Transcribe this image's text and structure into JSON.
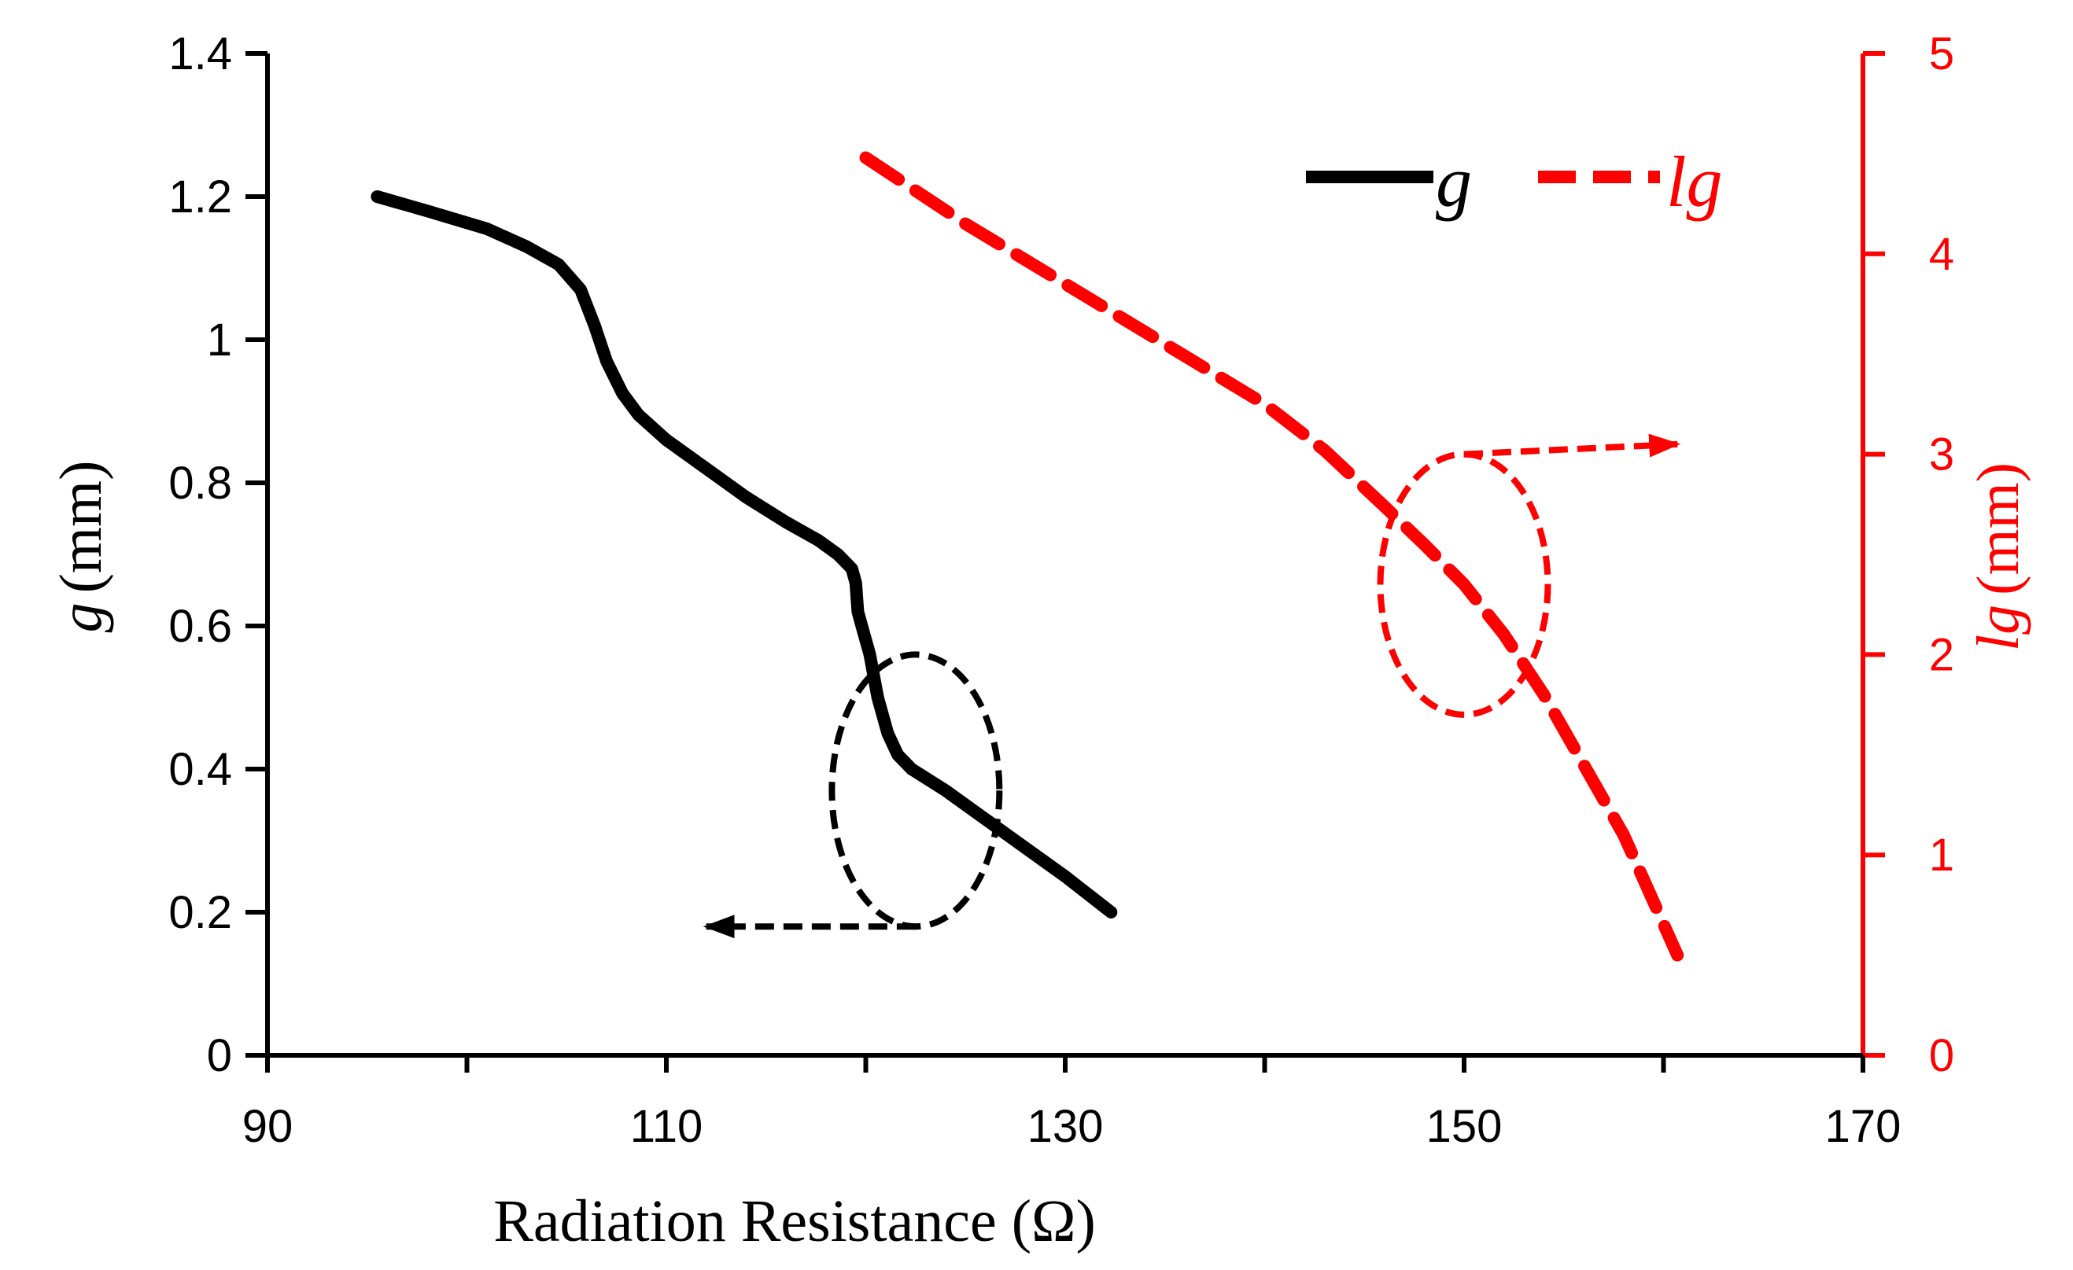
{
  "chart_data": {
    "type": "line",
    "title": "",
    "xlabel": "Radiation Resistance (Ω)",
    "xlim": [
      90,
      170
    ],
    "xticks": [
      90,
      110,
      130,
      150,
      170
    ],
    "xtick_labels": [
      "90",
      "110",
      "130",
      "150",
      "170"
    ],
    "ylabel_left": {
      "symbol": "g",
      "unit": "(mm)"
    },
    "ylim_left": [
      0,
      1.4
    ],
    "yticks_left": [
      0,
      0.2,
      0.4,
      0.6,
      0.8,
      1,
      1.2,
      1.4
    ],
    "ytick_labels_left": [
      "0",
      "0.2",
      "0.4",
      "0.6",
      "0.8",
      "1",
      "1.2",
      "1.4"
    ],
    "ylabel_right": {
      "symbol": "lg",
      "unit": "(mm)"
    },
    "ylim_right": [
      0,
      5
    ],
    "yticks_right": [
      0,
      1,
      2,
      3,
      4,
      5
    ],
    "ytick_labels_right": [
      "0",
      "1",
      "2",
      "3",
      "4",
      "5"
    ],
    "legend_position": "top-right",
    "series": [
      {
        "name": "g",
        "axis": "left",
        "style": "solid",
        "color": "#000000",
        "x": [
          95.5,
          98,
          101,
          103,
          104.6,
          105.7,
          106.4,
          107,
          107.8,
          108.6,
          110,
          112,
          114,
          116,
          117.6,
          118.6,
          119.3,
          119.5,
          119.6,
          119.8,
          120.2,
          120.6,
          121.1,
          121.6,
          122.3,
          124,
          126,
          128,
          130,
          132.3
        ],
        "y": [
          1.2,
          1.18,
          1.155,
          1.13,
          1.105,
          1.07,
          1.02,
          0.97,
          0.925,
          0.895,
          0.86,
          0.82,
          0.78,
          0.745,
          0.72,
          0.7,
          0.68,
          0.66,
          0.62,
          0.6,
          0.56,
          0.5,
          0.45,
          0.42,
          0.4,
          0.37,
          0.33,
          0.29,
          0.25,
          0.2
        ]
      },
      {
        "name": "lg",
        "axis": "right",
        "style": "dashed",
        "color": "#ff0000",
        "x": [
          120,
          125,
          130,
          135,
          140,
          143,
          146,
          148,
          150,
          152,
          154,
          156,
          158,
          160.7
        ],
        "y": [
          4.48,
          4.15,
          3.85,
          3.55,
          3.25,
          3.02,
          2.74,
          2.55,
          2.35,
          2.1,
          1.8,
          1.45,
          1.1,
          0.5
        ]
      }
    ],
    "annotations": [
      {
        "type": "ellipse",
        "target": "g",
        "color": "#000000",
        "cx": 122.5,
        "cy_left": 0.37,
        "rx": 4.2,
        "ry_left": 0.19
      },
      {
        "type": "arrow",
        "target": "g",
        "color": "#000000",
        "direction": "left",
        "from": [
          122.5,
          0.18
        ],
        "to": [
          112,
          0.18
        ]
      },
      {
        "type": "ellipse",
        "target": "lg",
        "color": "#ff0000",
        "cx": 150,
        "cy_right": 2.35,
        "rx": 4.2,
        "ry_right": 0.65
      },
      {
        "type": "arrow",
        "target": "lg",
        "color": "#ff0000",
        "direction": "right",
        "from": [
          150,
          3.0
        ],
        "to": [
          160.7,
          3.05
        ]
      }
    ]
  }
}
